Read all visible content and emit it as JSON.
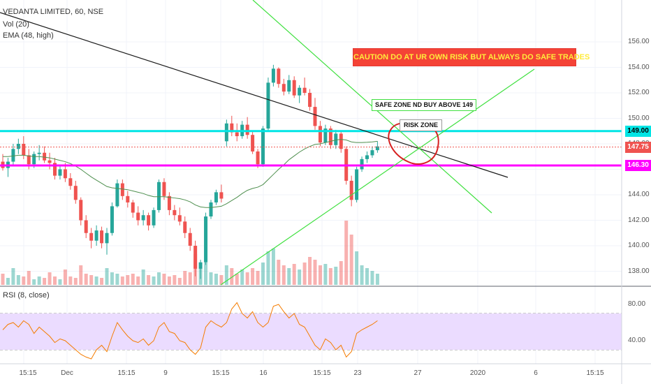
{
  "legend": {
    "symbol": "VEDANTA LIMITED, 60, NSE",
    "volume": "Vol (20)",
    "ema": "EMA (48, high)",
    "rsi": "RSI (8, close)"
  },
  "price_axis": {
    "ticks": [
      "156.00",
      "154.00",
      "152.00",
      "150.00",
      "148.00",
      "146.00",
      "144.00",
      "142.00",
      "140.00",
      "138.00"
    ],
    "tick_values": [
      156,
      154,
      152,
      150,
      148,
      146,
      144,
      142,
      140,
      138
    ],
    "labels": [
      {
        "text": "149.00",
        "value": 149.0,
        "color": "#00e5e5",
        "text_color": "#000000"
      },
      {
        "text": "147.75",
        "value": 147.75,
        "color": "#ef5350",
        "text_color": "#ffffff"
      },
      {
        "text": "146.30",
        "value": 146.3,
        "color": "#ff00ff",
        "text_color": "#ffffff"
      }
    ]
  },
  "rsi_axis": {
    "ticks": [
      "80.00",
      "40.00"
    ],
    "tick_values": [
      80,
      40
    ],
    "band": [
      70,
      30
    ]
  },
  "time_axis": {
    "labels": [
      "15:15",
      "Dec",
      "15:15",
      "9",
      "15:15",
      "16",
      "15:15",
      "23",
      "27",
      "2020",
      "6",
      "15:15"
    ]
  },
  "annotations": {
    "caution": "CAUTION DO AT UR OWN RISK BUT ALWAYS DO SAFE TRADES",
    "safe_zone": "SAFE ZONE ND  BUY ABOVE 149",
    "risk_zone": "RISK ZONE"
  },
  "colors": {
    "up": "#26a69a",
    "down": "#ef5350",
    "ema": "#4e8f4e",
    "rsi": "#f57c00",
    "rsi_band": "#ebdcff",
    "cyan_line": "#00e5e5",
    "magenta_line": "#ff00ff",
    "trend_green": "#40e040",
    "trend_black": "#1a1a1a",
    "risk_circle": "#d62020"
  },
  "chart_data": {
    "type": "candlestick",
    "title": "VEDANTA LIMITED, 60, NSE",
    "ylim": [
      136.5,
      157
    ],
    "horizontal_levels": [
      149.0,
      147.75,
      146.3
    ],
    "candles": [
      [
        146.6,
        147.2,
        145.9,
        146.1
      ],
      [
        146.1,
        146.9,
        145.4,
        146.6
      ],
      [
        146.6,
        148.0,
        146.3,
        147.6
      ],
      [
        147.6,
        148.4,
        147.2,
        148.0
      ],
      [
        148.0,
        148.6,
        146.8,
        147.1
      ],
      [
        147.1,
        147.6,
        146.0,
        146.4
      ],
      [
        146.4,
        147.4,
        146.1,
        147.2
      ],
      [
        147.2,
        147.9,
        146.7,
        147.3
      ],
      [
        147.3,
        147.8,
        146.5,
        146.7
      ],
      [
        146.7,
        147.3,
        146.0,
        146.5
      ],
      [
        146.5,
        146.9,
        145.2,
        145.5
      ],
      [
        145.5,
        146.3,
        145.2,
        146.0
      ],
      [
        146.0,
        146.5,
        145.0,
        145.3
      ],
      [
        145.3,
        145.7,
        144.4,
        144.7
      ],
      [
        144.7,
        145.1,
        143.3,
        143.6
      ],
      [
        143.6,
        143.8,
        141.6,
        142.0
      ],
      [
        142.0,
        142.4,
        140.6,
        141.0
      ],
      [
        141.0,
        141.4,
        139.8,
        140.4
      ],
      [
        140.4,
        141.6,
        140.0,
        141.2
      ],
      [
        141.2,
        141.5,
        139.8,
        140.2
      ],
      [
        140.2,
        141.4,
        139.3,
        141.0
      ],
      [
        141.0,
        143.4,
        140.8,
        143.1
      ],
      [
        143.1,
        145.2,
        143.0,
        144.9
      ],
      [
        144.9,
        145.2,
        143.6,
        143.9
      ],
      [
        143.9,
        144.3,
        143.0,
        143.4
      ],
      [
        143.4,
        143.6,
        142.2,
        142.6
      ],
      [
        142.6,
        143.1,
        141.6,
        142.0
      ],
      [
        142.0,
        142.8,
        141.6,
        142.4
      ],
      [
        142.4,
        142.6,
        141.2,
        141.6
      ],
      [
        141.6,
        143.0,
        141.4,
        142.8
      ],
      [
        142.8,
        145.2,
        142.6,
        145.0
      ],
      [
        145.0,
        145.3,
        143.6,
        143.9
      ],
      [
        143.9,
        144.2,
        142.4,
        142.8
      ],
      [
        142.8,
        143.2,
        142.0,
        142.4
      ],
      [
        142.4,
        143.0,
        141.6,
        141.9
      ],
      [
        141.9,
        142.3,
        140.6,
        141.0
      ],
      [
        141.0,
        141.4,
        139.6,
        140.0
      ],
      [
        140.0,
        140.4,
        137.6,
        138.2
      ],
      [
        138.2,
        138.9,
        137.4,
        138.7
      ],
      [
        138.7,
        142.6,
        138.5,
        142.3
      ],
      [
        142.3,
        143.6,
        142.1,
        143.4
      ],
      [
        143.4,
        144.4,
        143.2,
        144.2
      ],
      [
        144.2,
        144.8,
        143.4,
        143.7
      ],
      [
        148.2,
        149.9,
        147.8,
        149.6
      ],
      [
        149.6,
        150.2,
        148.6,
        148.9
      ],
      [
        148.9,
        149.6,
        148.2,
        148.6
      ],
      [
        148.6,
        149.8,
        148.4,
        149.5
      ],
      [
        149.5,
        150.1,
        148.4,
        148.7
      ],
      [
        148.7,
        149.0,
        147.2,
        147.4
      ],
      [
        147.4,
        147.6,
        146.1,
        146.4
      ],
      [
        146.4,
        149.4,
        146.2,
        149.2
      ],
      [
        149.2,
        153.2,
        149.0,
        152.8
      ],
      [
        152.8,
        154.2,
        152.5,
        153.9
      ],
      [
        153.9,
        154.0,
        152.4,
        152.7
      ],
      [
        152.7,
        153.1,
        151.8,
        152.1
      ],
      [
        152.1,
        153.4,
        151.9,
        153.0
      ],
      [
        153.0,
        153.3,
        151.6,
        151.8
      ],
      [
        151.8,
        152.6,
        151.2,
        152.4
      ],
      [
        152.4,
        153.2,
        151.8,
        152.0
      ],
      [
        152.0,
        152.3,
        150.6,
        150.9
      ],
      [
        150.9,
        151.6,
        149.1,
        149.4
      ],
      [
        149.4,
        149.8,
        147.8,
        148.1
      ],
      [
        148.1,
        149.5,
        147.9,
        149.2
      ],
      [
        149.2,
        149.4,
        147.6,
        147.9
      ],
      [
        147.9,
        149.1,
        147.6,
        148.8
      ],
      [
        148.8,
        149.0,
        147.3,
        147.6
      ],
      [
        147.6,
        147.8,
        144.8,
        145.1
      ],
      [
        145.1,
        145.5,
        143.1,
        143.6
      ],
      [
        143.6,
        146.2,
        143.4,
        146.0
      ],
      [
        146.0,
        147.0,
        145.8,
        146.8
      ],
      [
        146.8,
        147.4,
        146.5,
        147.1
      ],
      [
        147.1,
        147.8,
        146.9,
        147.5
      ],
      [
        147.5,
        148.2,
        147.3,
        147.8
      ]
    ],
    "volume": [
      40,
      25,
      60,
      35,
      30,
      50,
      20,
      30,
      25,
      45,
      30,
      20,
      55,
      30,
      25,
      70,
      40,
      35,
      30,
      25,
      60,
      45,
      40,
      30,
      35,
      40,
      30,
      55,
      35,
      30,
      45,
      40,
      30,
      35,
      25,
      50,
      45,
      110,
      60,
      80,
      45,
      40,
      35,
      70,
      60,
      40,
      55,
      45,
      60,
      50,
      80,
      120,
      130,
      90,
      70,
      60,
      75,
      55,
      80,
      100,
      90,
      70,
      75,
      60,
      65,
      85,
      230,
      180,
      120,
      70,
      60,
      50,
      40
    ],
    "ema": [
      147.0,
      147.0,
      147.05,
      147.1,
      147.1,
      147.05,
      147.0,
      147.0,
      146.95,
      146.9,
      146.8,
      146.7,
      146.6,
      146.45,
      146.25,
      146.0,
      145.7,
      145.4,
      145.15,
      144.9,
      144.65,
      144.55,
      144.5,
      144.45,
      144.4,
      144.3,
      144.2,
      144.1,
      143.95,
      143.85,
      143.85,
      143.85,
      143.8,
      143.75,
      143.7,
      143.6,
      143.45,
      143.2,
      143.05,
      143.0,
      143.0,
      143.05,
      143.1,
      143.3,
      143.55,
      143.8,
      144.1,
      144.35,
      144.5,
      144.6,
      144.8,
      145.2,
      145.6,
      146.0,
      146.35,
      146.75,
      147.05,
      147.35,
      147.6,
      147.8,
      147.95,
      148.0,
      148.1,
      148.2,
      148.3,
      148.35,
      148.3,
      148.15,
      148.1,
      148.1,
      148.12,
      148.15,
      148.2
    ],
    "rsi": [
      52,
      58,
      60,
      55,
      62,
      58,
      48,
      55,
      50,
      45,
      38,
      42,
      40,
      35,
      30,
      25,
      22,
      20,
      30,
      35,
      28,
      45,
      60,
      52,
      45,
      40,
      38,
      42,
      35,
      40,
      55,
      60,
      50,
      48,
      40,
      38,
      30,
      25,
      32,
      55,
      62,
      58,
      55,
      60,
      75,
      82,
      70,
      65,
      72,
      60,
      55,
      60,
      78,
      80,
      72,
      65,
      70,
      58,
      55,
      45,
      35,
      30,
      42,
      38,
      30,
      35,
      22,
      28,
      48,
      52,
      55,
      58,
      62
    ],
    "trendlines": [
      {
        "from": [
          "Nov 26",
          157.3
        ],
        "to": [
          "Jan 1",
          144.4
        ]
      },
      {
        "from": [
          "Dec 12",
          136.7
        ],
        "to": [
          "Jan 2",
          152.4
        ]
      },
      {
        "from": [
          "Dec 16",
          157.5
        ],
        "to": [
          "Dec 31",
          141.9
        ]
      }
    ]
  }
}
